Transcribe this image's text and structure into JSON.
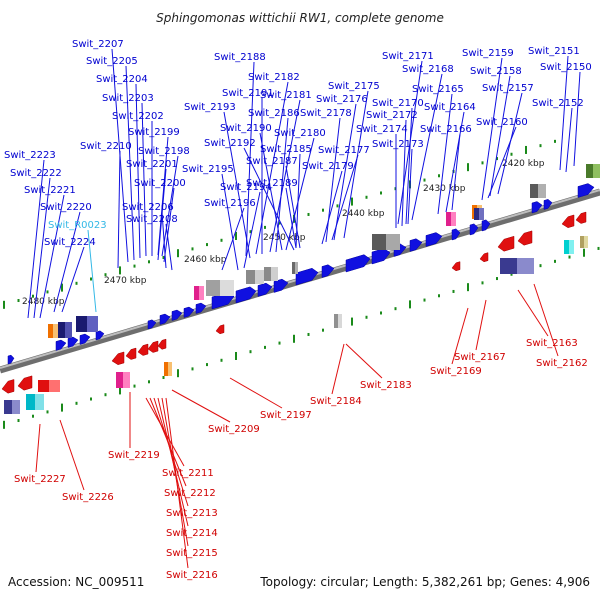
{
  "title": "Sphingomonas wittichii RW1, complete genome",
  "footer": {
    "accession": "Accession: NC_009511",
    "summary": "Topology: circular; Length: 5,382,261 bp; Genes: 4,906"
  },
  "colors": {
    "forward_gene": "#1010e0",
    "reverse_gene": "#e01010",
    "rna_gene": "#33b8e6",
    "tick": "#1a8a1a",
    "backbone": "#888888"
  },
  "kbp_marks": [
    "2420 kbp",
    "2430 kbp",
    "2440 kbp",
    "2450 kbp",
    "2460 kbp",
    "2470 kbp",
    "2480 kbp"
  ],
  "forward_labels": [
    "Swit_2207",
    "Swit_2205",
    "Swit_2204",
    "Swit_2203",
    "Swit_2202",
    "Swit_2199",
    "Swit_2210",
    "Swit_2198",
    "Swit_2201",
    "Swit_2200",
    "Swit_2206",
    "Swit_2208",
    "Swit_2223",
    "Swit_2222",
    "Swit_2221",
    "Swit_2220",
    "Swit_R0023",
    "Swit_2224",
    "Swit_2188",
    "Swit_2182",
    "Swit_2191",
    "Swit_2193",
    "Swit_2181",
    "Swit_2186",
    "Swit_2190",
    "Swit_2180",
    "Swit_2192",
    "Swit_2185",
    "Swit_2187",
    "Swit_2195",
    "Swit_2194",
    "Swit_2189",
    "Swit_2196",
    "Swit_2179",
    "Swit_2177",
    "Swit_2178",
    "Swit_2176",
    "Swit_2175",
    "Swit_2171",
    "Swit_2168",
    "Swit_2170",
    "Swit_2172",
    "Swit_2174",
    "Swit_2173",
    "Swit_2165",
    "Swit_2164",
    "Swit_2166",
    "Swit_2159",
    "Swit_2158",
    "Swit_2157",
    "Swit_2160",
    "Swit_2151",
    "Swit_2150",
    "Swit_2152"
  ],
  "reverse_labels": [
    "Swit_2227",
    "Swit_2226",
    "Swit_2219",
    "Swit_2209",
    "Swit_2211",
    "Swit_2212",
    "Swit_2213",
    "Swit_2214",
    "Swit_2215",
    "Swit_2216",
    "Swit_2197",
    "Swit_2184",
    "Swit_2183",
    "Swit_2169",
    "Swit_2167",
    "Swit_2163",
    "Swit_2162"
  ]
}
